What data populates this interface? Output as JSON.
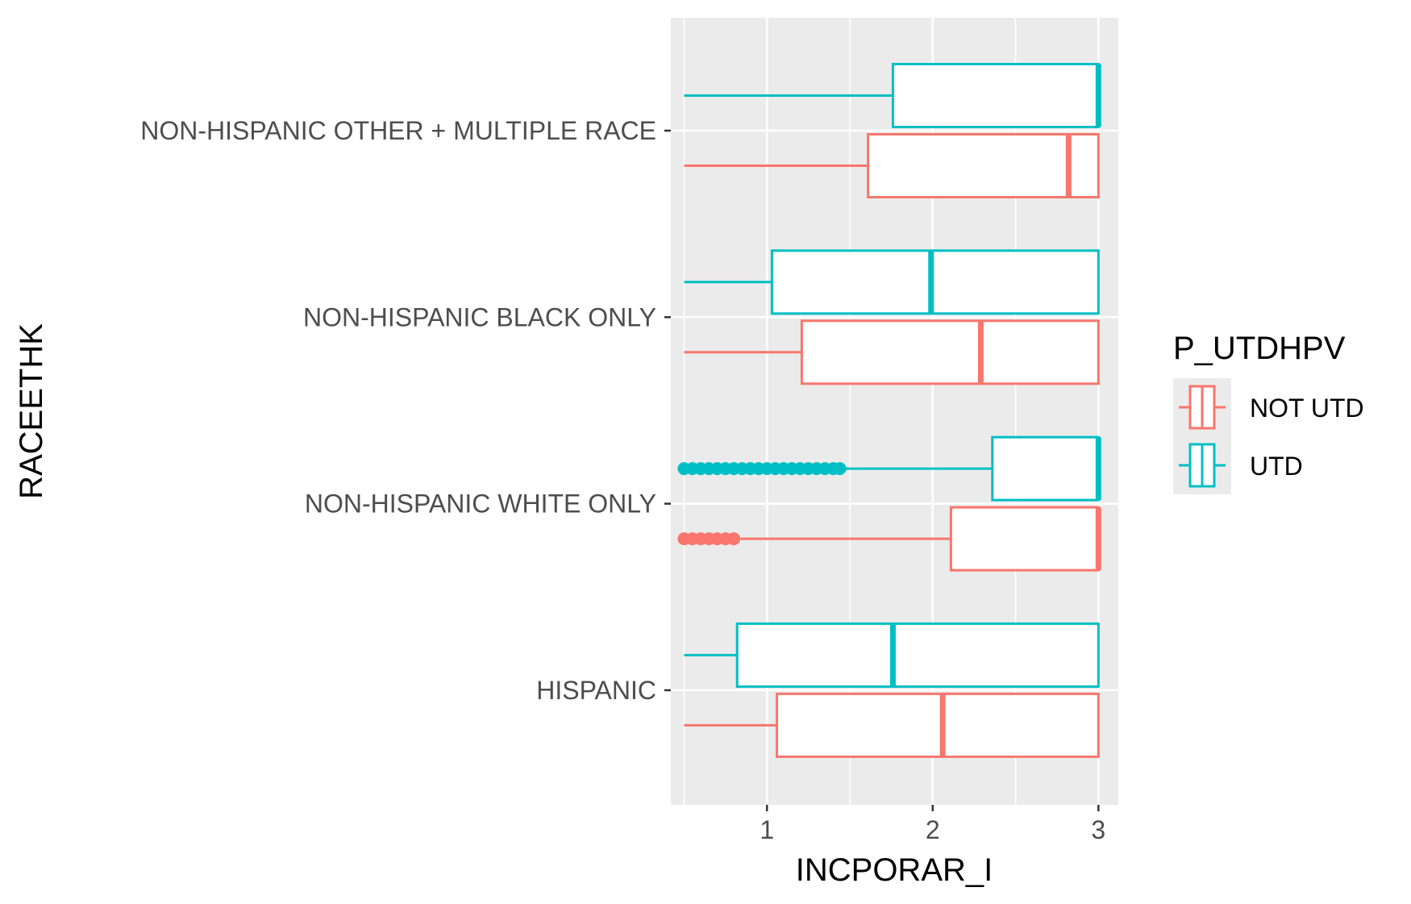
{
  "chart_data": {
    "type": "boxplot",
    "orientation": "horizontal",
    "title": "",
    "xlabel": "INCPORAR_I",
    "ylabel": "RACEETHK",
    "xlim": [
      0.42,
      3.12
    ],
    "xticks": [
      1,
      2,
      3
    ],
    "xtick_labels": [
      "1",
      "2",
      "3"
    ],
    "grid": true,
    "legend": {
      "title": "P_UTDHPV",
      "position": "right",
      "entries": [
        {
          "name": "NOT UTD",
          "color": "#f8766d"
        },
        {
          "name": "UTD",
          "color": "#00bfc4"
        }
      ]
    },
    "categories": [
      "NON-HISPANIC OTHER + MULTIPLE RACE",
      "NON-HISPANIC BLACK ONLY",
      "NON-HISPANIC WHITE ONLY",
      "HISPANIC"
    ],
    "series": [
      {
        "name": "NOT UTD",
        "color": "#f8766d",
        "boxes": [
          {
            "category": "NON-HISPANIC OTHER + MULTIPLE RACE",
            "whisker_low": 0.5,
            "q1": 1.61,
            "median": 2.82,
            "q3": 3.0,
            "whisker_high": 3.0,
            "outliers": []
          },
          {
            "category": "NON-HISPANIC BLACK ONLY",
            "whisker_low": 0.5,
            "q1": 1.21,
            "median": 2.29,
            "q3": 3.0,
            "whisker_high": 3.0,
            "outliers": []
          },
          {
            "category": "NON-HISPANIC WHITE ONLY",
            "whisker_low": 0.84,
            "q1": 2.11,
            "median": 3.0,
            "q3": 3.0,
            "whisker_high": 3.0,
            "outliers": [
              0.5,
              0.55,
              0.6,
              0.65,
              0.7,
              0.75,
              0.8
            ]
          },
          {
            "category": "HISPANIC",
            "whisker_low": 0.5,
            "q1": 1.06,
            "median": 2.06,
            "q3": 3.0,
            "whisker_high": 3.0,
            "outliers": []
          }
        ]
      },
      {
        "name": "UTD",
        "color": "#00bfc4",
        "boxes": [
          {
            "category": "NON-HISPANIC OTHER + MULTIPLE RACE",
            "whisker_low": 0.5,
            "q1": 1.76,
            "median": 3.0,
            "q3": 3.0,
            "whisker_high": 3.0,
            "outliers": []
          },
          {
            "category": "NON-HISPANIC BLACK ONLY",
            "whisker_low": 0.5,
            "q1": 1.03,
            "median": 1.99,
            "q3": 3.0,
            "whisker_high": 3.0,
            "outliers": []
          },
          {
            "category": "NON-HISPANIC WHITE ONLY",
            "whisker_low": 1.46,
            "q1": 2.36,
            "median": 3.0,
            "q3": 3.0,
            "whisker_high": 3.0,
            "outliers": [
              0.5,
              0.55,
              0.6,
              0.65,
              0.7,
              0.75,
              0.8,
              0.85,
              0.9,
              0.95,
              1.0,
              1.05,
              1.1,
              1.15,
              1.2,
              1.25,
              1.3,
              1.35,
              1.4,
              1.44
            ]
          },
          {
            "category": "HISPANIC",
            "whisker_low": 0.5,
            "q1": 0.82,
            "median": 1.76,
            "q3": 3.0,
            "whisker_high": 3.0,
            "outliers": []
          }
        ]
      }
    ]
  }
}
